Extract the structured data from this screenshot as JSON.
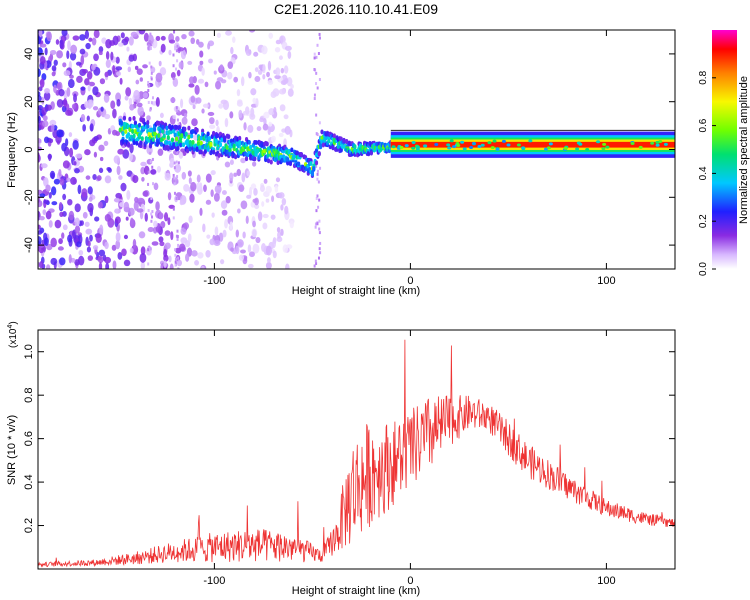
{
  "title": "C2E1.2026.110.10.41.E09",
  "chart_data": [
    {
      "type": "heatmap",
      "xlabel": "Height of straight line (km)",
      "ylabel": "Frequency (Hz)",
      "xlim": [
        -190,
        135
      ],
      "ylim": [
        -50,
        50
      ],
      "xticks": [
        -100,
        0,
        100
      ],
      "xtick_labels": [
        "-100",
        "0",
        "100"
      ],
      "yticks": [
        -40,
        -20,
        0,
        20,
        40
      ],
      "ytick_labels": [
        "-40",
        "-20",
        "0",
        "20",
        "40"
      ],
      "colorbar": {
        "label": "Normalized spectral amplitude",
        "range": [
          0,
          1
        ],
        "ticks": [
          0.0,
          0.2,
          0.4,
          0.6,
          0.8
        ],
        "tick_labels": [
          "0.0",
          "0.2",
          "0.4",
          "0.6",
          "0.8"
        ]
      },
      "features": {
        "noise_region_x": [
          -190,
          -120
        ],
        "ridge_start_x": -148,
        "ridge_points": [
          [
            -148,
            8
          ],
          [
            -120,
            5
          ],
          [
            -90,
            1
          ],
          [
            -60,
            -3
          ],
          [
            -50,
            -8
          ],
          [
            -45,
            5
          ],
          [
            -30,
            0
          ],
          [
            -10,
            1
          ],
          [
            0,
            2
          ],
          [
            135,
            2
          ]
        ],
        "steady_band_x": [
          -10,
          135
        ],
        "steady_band_freq": 2,
        "steady_band_peak": 0.9
      }
    },
    {
      "type": "line",
      "xlabel": "Height of straight line (km)",
      "ylabel": "SNR (10 * v/v)",
      "y_multiplier": "(x10",
      "y_multiplier_exp": "4",
      "y_multiplier_close": ")",
      "xlim": [
        -190,
        135
      ],
      "ylim": [
        0,
        1.1
      ],
      "xticks": [
        -100,
        0,
        100
      ],
      "xtick_labels": [
        "-100",
        "0",
        "100"
      ],
      "yticks": [
        0.2,
        0.4,
        0.6,
        0.8,
        1.0
      ],
      "ytick_labels": [
        "0.2",
        "0.4",
        "0.6",
        "0.8",
        "1.0"
      ],
      "series": [
        {
          "name": "SNR",
          "color": "#ee3333",
          "envelope_x": [
            -190,
            -160,
            -140,
            -120,
            -100,
            -80,
            -60,
            -45,
            -38,
            -30,
            -20,
            -10,
            0,
            10,
            20,
            30,
            40,
            50,
            60,
            80,
            100,
            120,
            135
          ],
          "envelope_mean": [
            0.02,
            0.03,
            0.05,
            0.08,
            0.1,
            0.11,
            0.1,
            0.06,
            0.15,
            0.35,
            0.45,
            0.48,
            0.55,
            0.62,
            0.68,
            0.72,
            0.7,
            0.6,
            0.5,
            0.38,
            0.28,
            0.23,
            0.21
          ],
          "envelope_noise": [
            0.01,
            0.015,
            0.03,
            0.05,
            0.07,
            0.08,
            0.07,
            0.03,
            0.08,
            0.25,
            0.25,
            0.2,
            0.18,
            0.18,
            0.12,
            0.08,
            0.07,
            0.08,
            0.08,
            0.06,
            0.04,
            0.03,
            0.02
          ]
        }
      ]
    }
  ]
}
